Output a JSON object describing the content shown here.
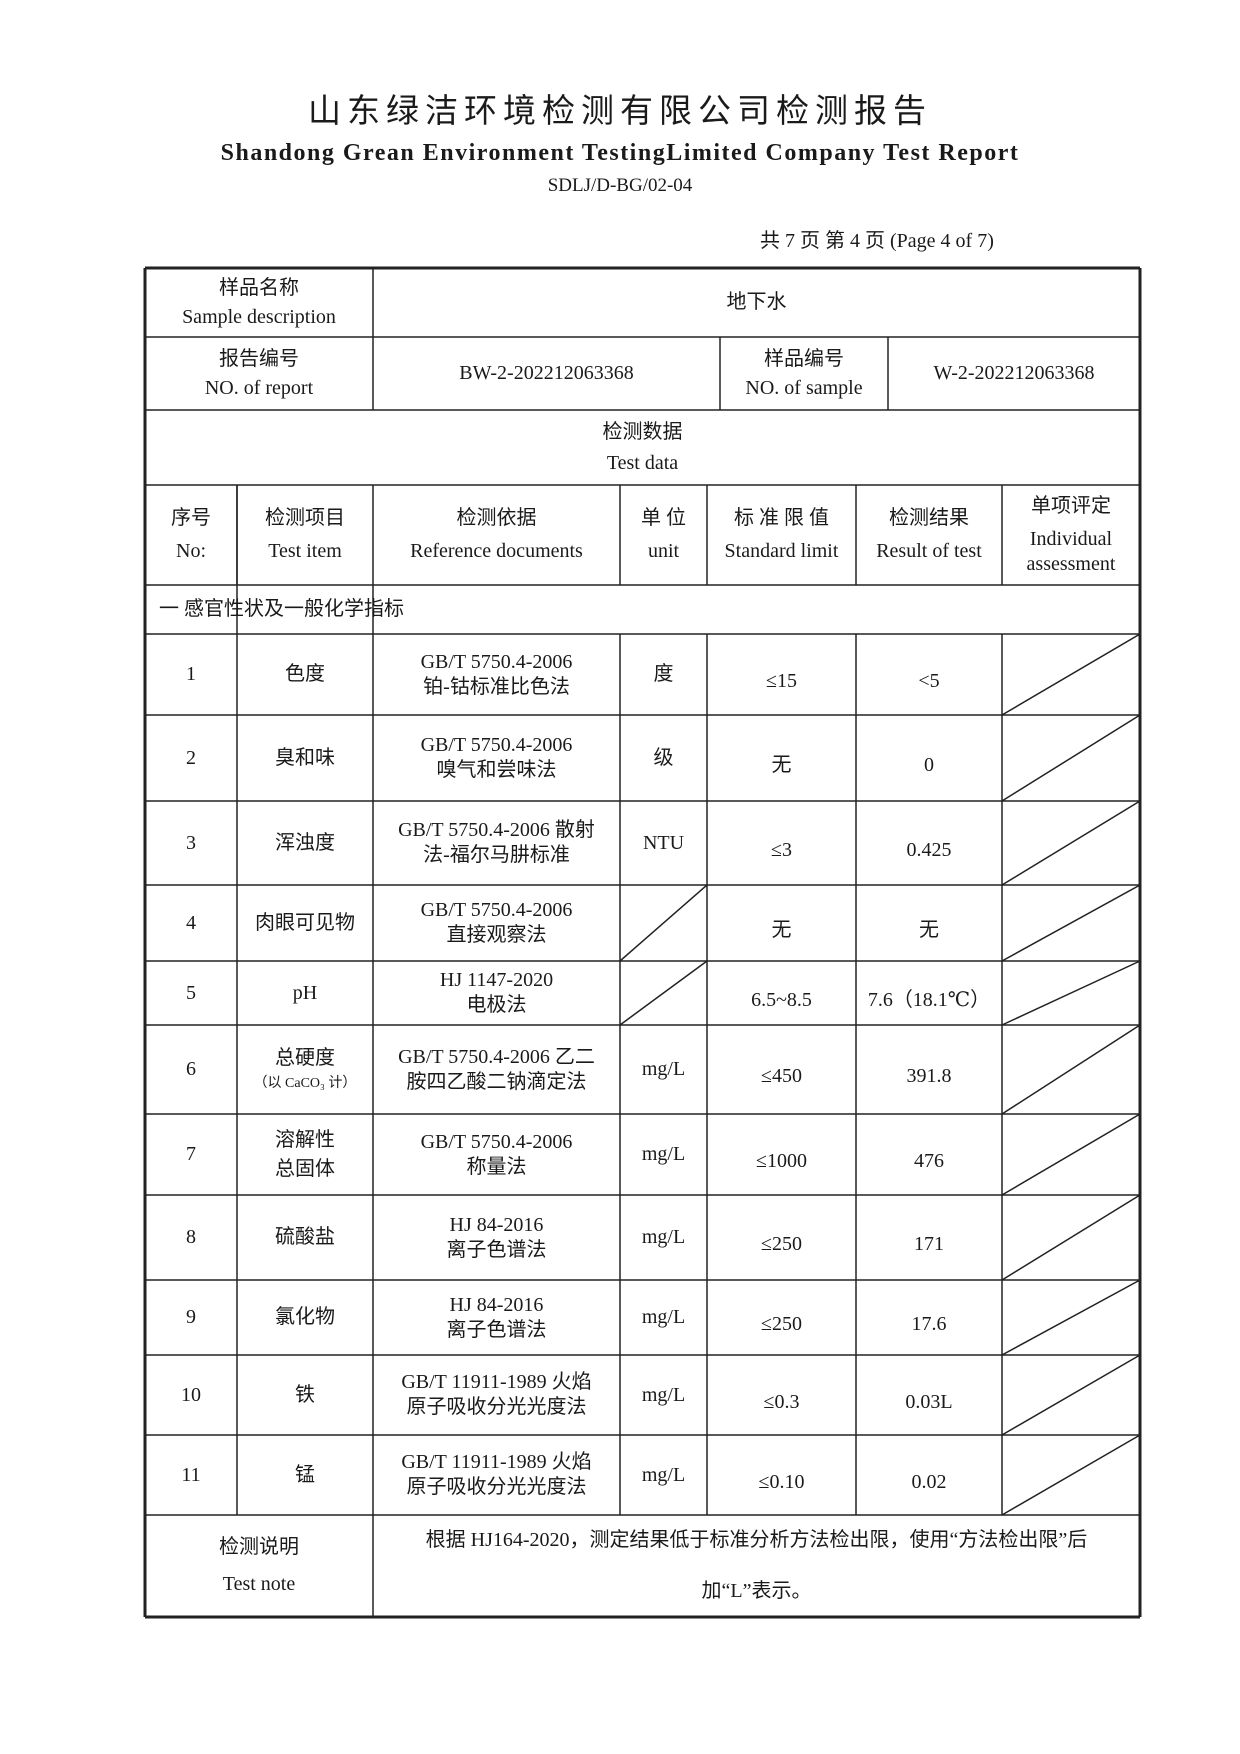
{
  "header": {
    "title_cn": "山东绿洁环境检测有限公司检测报告",
    "title_en": "Shandong Grean Environment TestingLimited Company Test Report",
    "doc_code": "SDLJ/D-BG/02-04",
    "page_info": "共 7 页  第 4 页  (Page 4 of 7)"
  },
  "info": {
    "sample_desc_cn": "样品名称",
    "sample_desc_en": "Sample description",
    "sample_desc_value": "地下水",
    "report_no_cn": "报告编号",
    "report_no_en": "NO. of report",
    "report_no_value": "BW-2-202212063368",
    "sample_no_cn": "样品编号",
    "sample_no_en": "NO. of sample",
    "sample_no_value": "W-2-202212063368"
  },
  "test_data": {
    "cn": "检测数据",
    "en": "Test data"
  },
  "columns": [
    {
      "cn": "序号",
      "en": "No:"
    },
    {
      "cn": "检测项目",
      "en": "Test item"
    },
    {
      "cn": "检测依据",
      "en": "Reference documents"
    },
    {
      "cn": "单 位",
      "en": "unit"
    },
    {
      "cn": "标 准 限 值",
      "en": "Standard limit"
    },
    {
      "cn": "检测结果",
      "en": "Result of test"
    },
    {
      "cn": "单项评定",
      "en": "Individual assessment"
    }
  ],
  "section": "一  感官性状及一般化学指标",
  "rows": [
    {
      "no": "1",
      "item": "色度",
      "item_note": "",
      "ref1": "GB/T 5750.4-2006",
      "ref2": "铂-钴标准比色法",
      "unit": "度",
      "limit": "≤15",
      "result": "<5"
    },
    {
      "no": "2",
      "item": "臭和味",
      "item_note": "",
      "ref1": "GB/T 5750.4-2006",
      "ref2": "嗅气和尝味法",
      "unit": "级",
      "limit": "无",
      "result": "0"
    },
    {
      "no": "3",
      "item": "浑浊度",
      "item_note": "",
      "ref1": "GB/T 5750.4-2006 散射",
      "ref2": "法-福尔马肼标准",
      "unit": "NTU",
      "limit": "≤3",
      "result": "0.425"
    },
    {
      "no": "4",
      "item": "肉眼可见物",
      "item_note": "",
      "ref1": "GB/T 5750.4-2006",
      "ref2": "直接观察法",
      "unit": "",
      "limit": "无",
      "result": "无"
    },
    {
      "no": "5",
      "item": "pH",
      "item_note": "",
      "ref1": "HJ 1147-2020",
      "ref2": "电极法",
      "unit": "",
      "limit": "6.5~8.5",
      "result": "7.6（18.1℃）"
    },
    {
      "no": "6",
      "item": "总硬度",
      "item_note": "（以 CaCO₃ 计）",
      "ref1": "GB/T 5750.4-2006 乙二",
      "ref2": "胺四乙酸二钠滴定法",
      "unit": "mg/L",
      "limit": "≤450",
      "result": "391.8"
    },
    {
      "no": "7",
      "item": "溶解性",
      "item_note": "总固体",
      "ref1": "GB/T 5750.4-2006",
      "ref2": "称量法",
      "unit": "mg/L",
      "limit": "≤1000",
      "result": "476"
    },
    {
      "no": "8",
      "item": "硫酸盐",
      "item_note": "",
      "ref1": "HJ 84-2016",
      "ref2": "离子色谱法",
      "unit": "mg/L",
      "limit": "≤250",
      "result": "171"
    },
    {
      "no": "9",
      "item": "氯化物",
      "item_note": "",
      "ref1": "HJ 84-2016",
      "ref2": "离子色谱法",
      "unit": "mg/L",
      "limit": "≤250",
      "result": "17.6"
    },
    {
      "no": "10",
      "item": "铁",
      "item_note": "",
      "ref1": "GB/T 11911-1989 火焰",
      "ref2": "原子吸收分光光度法",
      "unit": "mg/L",
      "limit": "≤0.3",
      "result": "0.03L"
    },
    {
      "no": "11",
      "item": "锰",
      "item_note": "",
      "ref1": "GB/T 11911-1989 火焰",
      "ref2": "原子吸收分光光度法",
      "unit": "mg/L",
      "limit": "≤0.10",
      "result": "0.02"
    }
  ],
  "note": {
    "label_cn": "检测说明",
    "label_en": "Test note",
    "text1": "根据 HJ164-2020，测定结果低于标准分析方法检出限，使用“方法检出限”后",
    "text2": "加“L”表示。"
  }
}
